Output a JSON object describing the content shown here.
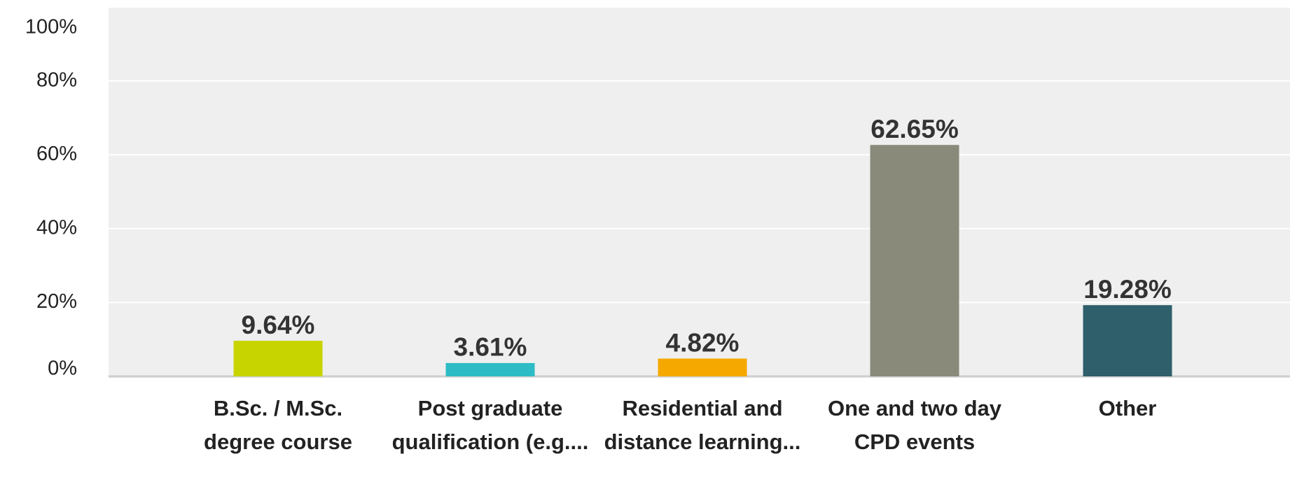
{
  "chart_data": {
    "type": "bar",
    "categories": [
      "B.Sc. / M.Sc. degree course",
      "Post graduate qualification (e.g....",
      "Residential and distance learning...",
      "One and two day CPD events",
      "Other"
    ],
    "values": [
      9.64,
      3.61,
      4.82,
      62.65,
      19.28
    ],
    "value_labels": [
      "9.64%",
      "3.61%",
      "4.82%",
      "62.65%",
      "19.28%"
    ],
    "colors": [
      "#c8d400",
      "#2dbcc5",
      "#f5a900",
      "#898a7a",
      "#2e5f6b"
    ],
    "ylim": [
      0,
      100
    ],
    "yticks": [
      {
        "value": 0,
        "label": "0%"
      },
      {
        "value": 20,
        "label": "20%"
      },
      {
        "value": 40,
        "label": "40%"
      },
      {
        "value": 60,
        "label": "60%"
      },
      {
        "value": 80,
        "label": "80%"
      },
      {
        "value": 100,
        "label": "100%"
      }
    ],
    "grid": true
  }
}
